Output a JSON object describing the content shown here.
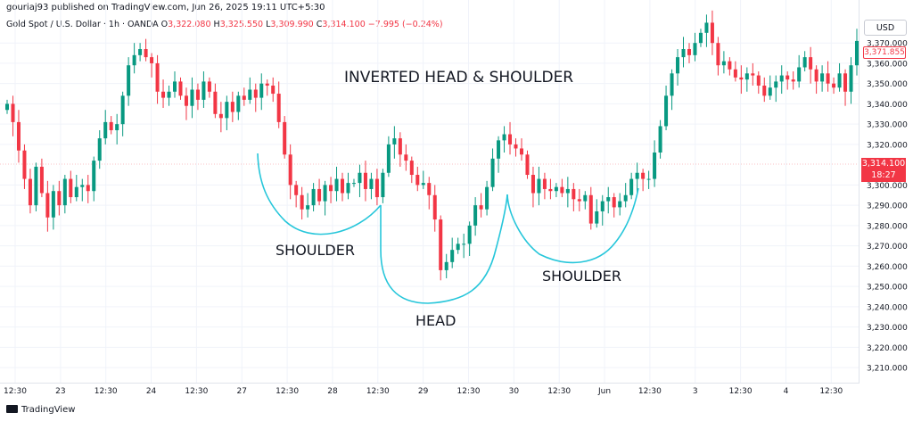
{
  "header": {
    "publisher_line": "gouriaj93 published on TradingView.com, Jun 26, 2025 19:11 UTC+5:30",
    "symbol": "Gold Spot / U.S. Dollar · 1h · OANDA",
    "ohlc": [
      {
        "k": "O",
        "v": "3,322.080"
      },
      {
        "k": "H",
        "v": "3,325.550"
      },
      {
        "k": "L",
        "v": "3,309.990"
      },
      {
        "k": "C",
        "v": "3,314.100"
      }
    ],
    "change": "−7.995 (−0.24%)"
  },
  "currency_button": "USD",
  "price_label": "3,371.855",
  "current_price": "3,314.100",
  "countdown": "18:27",
  "footer": {
    "brand": "TradingView"
  },
  "colors": {
    "up": "#089981",
    "down": "#f23645",
    "pattern": "#26c6da",
    "grid": "#f0f3fa"
  },
  "chart_data": {
    "type": "candlestick",
    "title": "INVERTED HEAD & SHOULDER",
    "annotations": [
      "SHOULDER",
      "HEAD",
      "SHOULDER"
    ],
    "y_ticks": [
      "3,370.000",
      "3,360.000",
      "3,350.000",
      "3,340.000",
      "3,330.000",
      "3,320.000",
      "3,300.000",
      "3,290.000",
      "3,280.000",
      "3,270.000",
      "3,260.000",
      "3,250.000",
      "3,240.000",
      "3,230.000",
      "3,220.000",
      "3,210.000"
    ],
    "x_ticks": [
      "12:30",
      "23",
      "12:30",
      "24",
      "12:30",
      "27",
      "12:30",
      "28",
      "12:30",
      "29",
      "12:30",
      "30",
      "12:30",
      "Jun",
      "12:30",
      "3",
      "12:30",
      "4",
      "12:30"
    ],
    "ylim": [
      3203,
      3378
    ],
    "current_price": 3314.1,
    "closes": [
      3340,
      3331,
      3317,
      3303,
      3290,
      3309,
      3296,
      3284,
      3297,
      3290,
      3303,
      3294,
      3299,
      3300,
      3297,
      3312,
      3323,
      3331,
      3327,
      3330,
      3344,
      3359,
      3364,
      3367,
      3363,
      3360,
      3346,
      3343,
      3346,
      3351,
      3344,
      3339,
      3347,
      3342,
      3351,
      3346,
      3335,
      3333,
      3341,
      3336,
      3344,
      3342,
      3347,
      3343,
      3350,
      3349,
      3345,
      3331,
      3315,
      3300,
      3295,
      3288,
      3290,
      3298,
      3292,
      3300,
      3297,
      3303,
      3296,
      3301,
      3301,
      3306,
      3298,
      3303,
      3294,
      3306,
      3320,
      3323,
      3315,
      3312,
      3305,
      3300,
      3301,
      3295,
      3283,
      3258,
      3262,
      3268,
      3271,
      3271,
      3280,
      3290,
      3288,
      3299,
      3313,
      3322,
      3325,
      3320,
      3318,
      3315,
      3305,
      3296,
      3303,
      3298,
      3297,
      3299,
      3296,
      3298,
      3293,
      3292,
      3295,
      3281,
      3287,
      3292,
      3294,
      3289,
      3292,
      3295,
      3303,
      3306,
      3303,
      3303,
      3316,
      3329,
      3344,
      3355,
      3363,
      3367,
      3364,
      3370,
      3375,
      3380,
      3370,
      3359,
      3361,
      3357,
      3353,
      3352,
      3355,
      3354,
      3349,
      3344,
      3348,
      3351,
      3354,
      3352,
      3351,
      3358,
      3363,
      3357,
      3351,
      3355,
      3350,
      3348,
      3355,
      3346,
      3359,
      3371
    ]
  }
}
